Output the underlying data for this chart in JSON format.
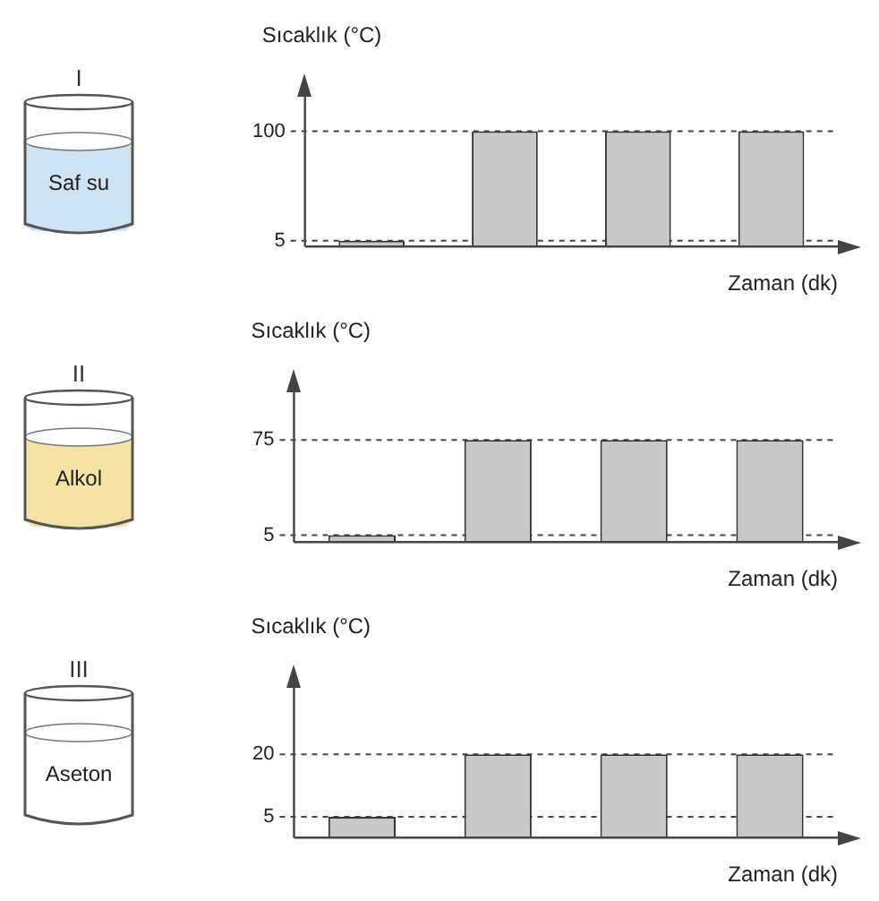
{
  "chart_data": [
    {
      "type": "bar",
      "annotations": [
        "I",
        "Saf su"
      ],
      "ylabel": "Sıcaklık (°C)",
      "xlabel": "Zaman (dk)",
      "categories": [
        null,
        null,
        null,
        null
      ],
      "values": [
        5,
        100,
        100,
        100
      ],
      "color": "#c8c8c8",
      "ylim": [
        0,
        130
      ],
      "yticks": [
        5,
        100
      ],
      "ref_lines": [
        {
          "axis": "y",
          "value": 5,
          "line_style": "dashed"
        },
        {
          "axis": "y",
          "value": 100,
          "line_style": "dashed"
        }
      ]
    },
    {
      "type": "bar",
      "annotations": [
        "II",
        "Alkol"
      ],
      "ylabel": "Sıcaklık (°C)",
      "xlabel": "Zaman (dk)",
      "categories": [
        null,
        null,
        null,
        null
      ],
      "values": [
        5,
        75,
        75,
        75
      ],
      "color": "#c8c8c8",
      "ylim": [
        0,
        110
      ],
      "yticks": [
        5,
        75
      ],
      "ref_lines": [
        {
          "axis": "y",
          "value": 5,
          "line_style": "dashed"
        },
        {
          "axis": "y",
          "value": 75,
          "line_style": "dashed"
        }
      ]
    },
    {
      "type": "bar",
      "annotations": [
        "III",
        "Aseton"
      ],
      "ylabel": "Sıcaklık (°C)",
      "xlabel": "Zaman (dk)",
      "categories": [
        null,
        null,
        null,
        null
      ],
      "values": [
        5,
        20,
        20,
        20
      ],
      "color": "#c8c8c8",
      "ylim": [
        0,
        36
      ],
      "yticks": [
        5,
        20
      ],
      "ref_lines": [
        {
          "axis": "y",
          "value": 5,
          "line_style": "dashed"
        },
        {
          "axis": "y",
          "value": 20,
          "line_style": "dashed"
        }
      ]
    }
  ]
}
